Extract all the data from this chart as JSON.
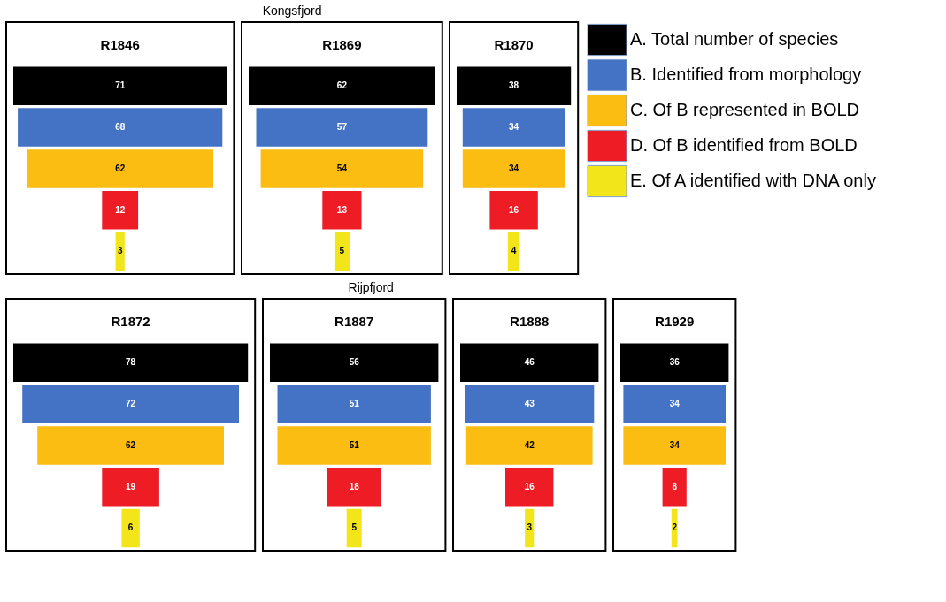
{
  "chart_data": {
    "type": "other",
    "annotations": [
      "Kongsfjord",
      "Rijpfjord"
    ],
    "legend": "right",
    "data_labels": true,
    "categories": [
      "R1846",
      "R1869",
      "R1870",
      "R1872",
      "R1887",
      "R1888",
      "R1929"
    ],
    "series": [
      {
        "name": "A. Total number of species",
        "color": "#000000",
        "values": [
          71,
          62,
          38,
          78,
          56,
          46,
          36
        ]
      },
      {
        "name": "B. Identified from morphology",
        "color": "#4472c4",
        "values": [
          68,
          57,
          34,
          72,
          51,
          43,
          34
        ]
      },
      {
        "name": "C. Of B represented in BOLD",
        "color": "#fbbd11",
        "values": [
          62,
          54,
          34,
          62,
          51,
          42,
          34
        ]
      },
      {
        "name": "D. Of B identified from BOLD",
        "color": "#ee1c25",
        "values": [
          12,
          13,
          16,
          19,
          18,
          16,
          8
        ]
      },
      {
        "name": "E. Of A identified with DNA only",
        "color": "#f2e61a",
        "values": [
          3,
          5,
          4,
          6,
          5,
          3,
          2
        ]
      }
    ]
  }
}
